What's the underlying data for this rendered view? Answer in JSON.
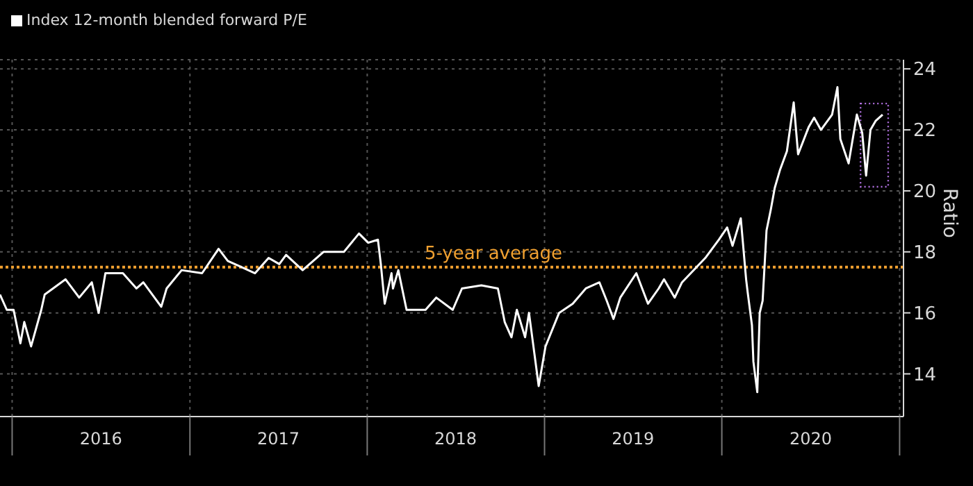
{
  "chart_data": {
    "type": "line",
    "x": [
      "2015-12-07",
      "2015-12-21",
      "2016-01-04",
      "2016-01-18",
      "2016-01-26",
      "2016-02-09",
      "2016-03-01",
      "2016-03-08",
      "2016-04-20",
      "2016-05-18",
      "2016-06-13",
      "2016-06-27",
      "2016-07-11",
      "2016-08-16",
      "2016-09-13",
      "2016-09-27",
      "2016-11-03",
      "2016-11-14",
      "2016-12-15",
      "2017-01-26",
      "2017-03-01",
      "2017-03-20",
      "2017-04-17",
      "2017-05-15",
      "2017-06-12",
      "2017-07-04",
      "2017-07-18",
      "2017-08-21",
      "2017-10-03",
      "2017-11-14",
      "2017-12-15",
      "2018-01-03",
      "2018-01-23",
      "2018-01-29",
      "2018-02-06",
      "2018-02-20",
      "2018-02-23",
      "2018-03-06",
      "2018-03-23",
      "2018-05-01",
      "2018-05-23",
      "2018-06-26",
      "2018-07-15",
      "2018-08-24",
      "2018-09-27",
      "2018-10-11",
      "2018-10-25",
      "2018-11-05",
      "2018-11-22",
      "2018-11-30",
      "2018-12-20",
      "2019-01-03",
      "2019-01-31",
      "2019-02-28",
      "2019-03-27",
      "2019-04-24",
      "2019-05-09",
      "2019-05-23",
      "2019-06-06",
      "2019-07-09",
      "2019-08-02",
      "2019-08-24",
      "2019-09-04",
      "2019-09-26",
      "2019-10-11",
      "2019-11-28",
      "2019-12-26",
      "2020-01-12",
      "2020-01-23",
      "2020-02-09",
      "2020-02-20",
      "2020-02-23",
      "2020-03-03",
      "2020-03-06",
      "2020-03-14",
      "2020-03-19",
      "2020-03-25",
      "2020-04-02",
      "2020-04-11",
      "2020-04-19",
      "2020-04-30",
      "2020-05-14",
      "2020-05-28",
      "2020-06-06",
      "2020-06-28",
      "2020-07-09",
      "2020-07-23",
      "2020-08-15",
      "2020-08-26",
      "2020-09-01",
      "2020-09-18",
      "2020-10-05",
      "2020-10-16",
      "2020-10-24",
      "2020-11-02",
      "2020-11-13",
      "2020-11-27"
    ],
    "series": [
      {
        "name": "Index 12-month blended forward P/E",
        "color": "#ffffff",
        "values": [
          16.6,
          16.1,
          16.1,
          15.0,
          15.7,
          14.9,
          16.1,
          16.6,
          17.1,
          16.5,
          17.0,
          16.0,
          17.3,
          17.3,
          16.8,
          17.0,
          16.2,
          16.8,
          17.4,
          17.3,
          18.1,
          17.7,
          17.5,
          17.3,
          17.8,
          17.6,
          17.9,
          17.4,
          18.0,
          18.0,
          18.6,
          18.3,
          18.4,
          17.6,
          16.3,
          17.3,
          16.8,
          17.4,
          16.1,
          16.1,
          16.5,
          16.1,
          16.8,
          16.9,
          16.8,
          15.7,
          15.2,
          16.1,
          15.2,
          16.0,
          13.6,
          14.9,
          16.0,
          16.3,
          16.8,
          17.0,
          16.4,
          15.8,
          16.5,
          17.3,
          16.3,
          16.8,
          17.1,
          16.5,
          17.0,
          17.8,
          18.4,
          18.8,
          18.2,
          19.1,
          17.1,
          16.7,
          15.6,
          14.4,
          13.4,
          16.0,
          16.4,
          18.7,
          19.4,
          20.1,
          20.7,
          21.3,
          22.9,
          21.2,
          22.1,
          22.4,
          22.0,
          22.5,
          23.4,
          21.7,
          20.9,
          22.5,
          21.9,
          20.5,
          22.0,
          22.3,
          22.5
        ]
      }
    ],
    "ylabel": "Ratio",
    "xlim": [
      "2015-12-07",
      "2021-01-09"
    ],
    "xticks": [
      {
        "value": "2016-01-01",
        "label": null
      },
      {
        "value": "2016-07-02",
        "label": "2016"
      },
      {
        "value": "2017-01-01",
        "label": null
      },
      {
        "value": "2017-07-02",
        "label": "2017"
      },
      {
        "value": "2018-01-01",
        "label": null
      },
      {
        "value": "2018-07-02",
        "label": "2018"
      },
      {
        "value": "2019-01-01",
        "label": null
      },
      {
        "value": "2019-07-02",
        "label": "2019"
      },
      {
        "value": "2020-01-01",
        "label": null
      },
      {
        "value": "2020-07-02",
        "label": "2020"
      },
      {
        "value": "2021-01-01",
        "label": null
      }
    ],
    "ylim": [
      12.6,
      24.3
    ],
    "yticks": [
      14,
      16,
      18,
      20,
      22,
      24
    ],
    "ref_lines": [
      {
        "axis": "y",
        "value": 17.5,
        "label": "5-year average",
        "color": "#f0a030",
        "line_style": "dotted"
      }
    ],
    "grid": true,
    "legend": "top left",
    "line_style": "solid",
    "marker": "none"
  }
}
